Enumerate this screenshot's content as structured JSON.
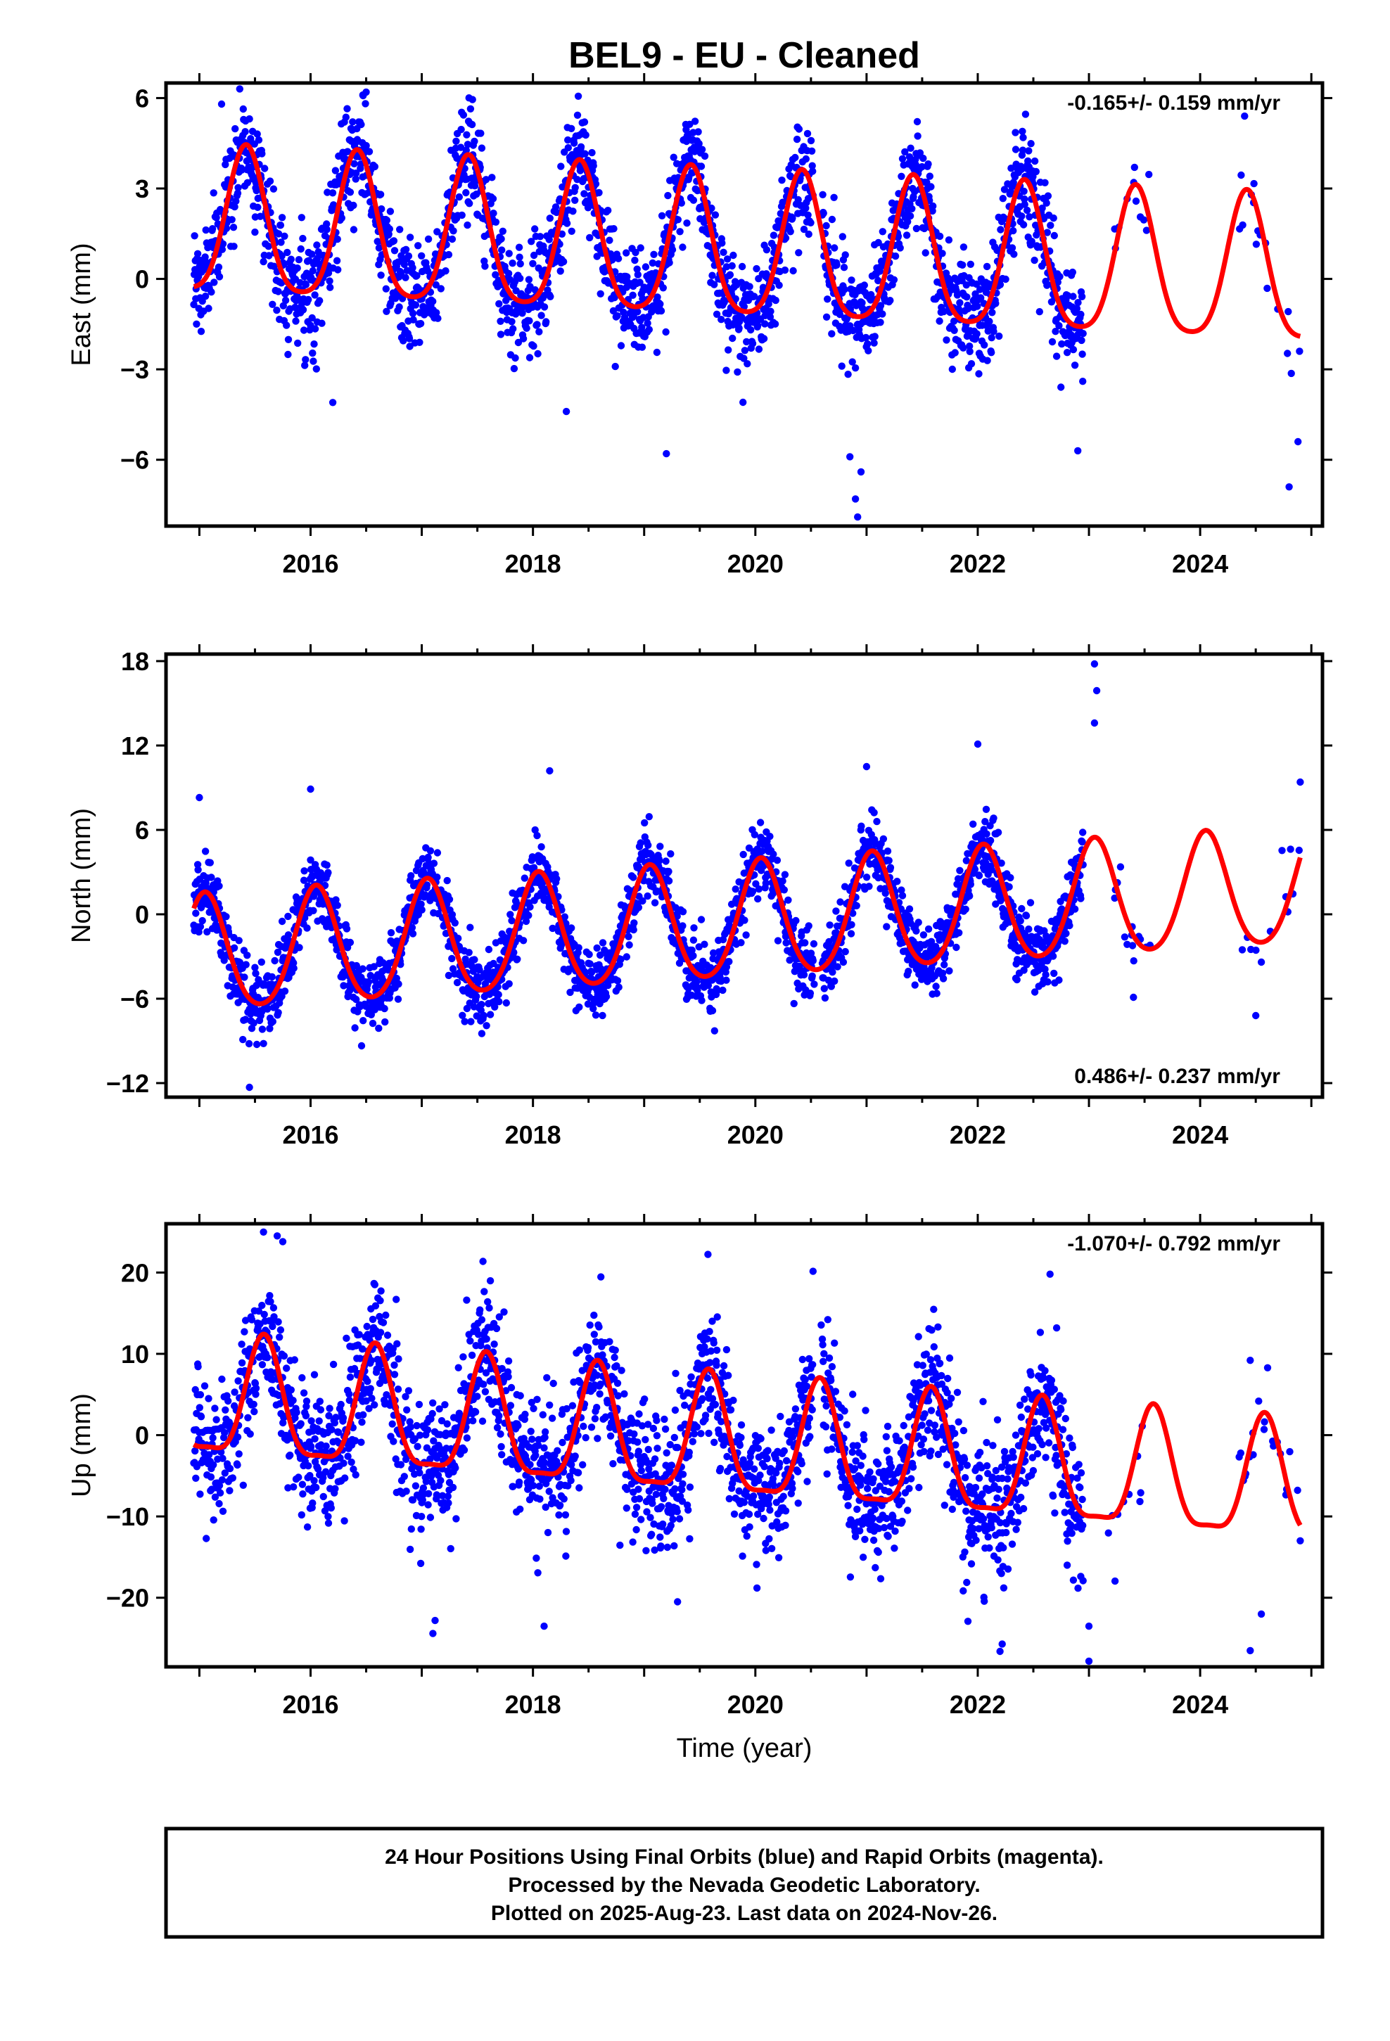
{
  "title": "BEL9  - EU - Cleaned",
  "xlabel": "Time (year)",
  "footer": {
    "line1": "24 Hour Positions Using Final Orbits (blue) and Rapid Orbits (magenta).",
    "line2": "Processed by the Nevada Geodetic Laboratory.",
    "line3": "Plotted on 2025-Aug-23. Last data on 2024-Nov-26."
  },
  "colors": {
    "points": "#0000ff",
    "model": "#ff0000",
    "frame": "#000000"
  },
  "chart_data": [
    {
      "type": "scatter",
      "ylabel": "East (mm)",
      "rate": "-0.165+/- 0.159 mm/yr",
      "rate_position": "top-right",
      "xlim": [
        2014.7,
        2025.1
      ],
      "ylim": [
        -8.2,
        6.5
      ],
      "yticks": [
        6,
        3,
        0,
        -3,
        -6
      ],
      "xticks": [
        2016,
        2018,
        2020,
        2022,
        2024
      ],
      "model": {
        "offset": 0.85,
        "trend": -0.165,
        "t0": 2020.0,
        "annual_amp": 2.4,
        "annual_peak": 2015.42,
        "semi_amp": 0.45,
        "semi_peak": 2015.42,
        "extra": []
      },
      "noise_sd": 0.9,
      "outliers": [
        [
          2015.2,
          5.8
        ],
        [
          2016.47,
          6.1
        ],
        [
          2016.5,
          6.2
        ],
        [
          2019.4,
          4.8
        ],
        [
          2020.9,
          -7.3
        ],
        [
          2020.92,
          -7.9
        ],
        [
          2020.95,
          -6.4
        ],
        [
          2020.85,
          -5.9
        ],
        [
          2019.2,
          -5.8
        ],
        [
          2016.2,
          -4.1
        ],
        [
          2018.3,
          -4.4
        ],
        [
          2022.9,
          -5.7
        ],
        [
          2024.4,
          5.4
        ],
        [
          2024.8,
          -6.9
        ],
        [
          2024.88,
          -5.4
        ]
      ]
    },
    {
      "type": "scatter",
      "ylabel": "North (mm)",
      "rate": "0.486+/- 0.237 mm/yr",
      "rate_position": "bottom-right",
      "xlim": [
        2014.7,
        2025.1
      ],
      "ylim": [
        -13,
        18.5
      ],
      "yticks": [
        18,
        12,
        6,
        0,
        -6,
        -12
      ],
      "xticks": [
        2016,
        2018,
        2020,
        2022,
        2024
      ],
      "model": {
        "offset": -0.6,
        "trend": 0.486,
        "t0": 2020.0,
        "annual_amp": 4.1,
        "annual_peak": 2015.05,
        "semi_amp": 0.5,
        "semi_peak": 2015.05,
        "extra": []
      },
      "noise_sd": 1.25,
      "outliers": [
        [
          2015.45,
          -12.3
        ],
        [
          2015.0,
          8.3
        ],
        [
          2016.0,
          8.9
        ],
        [
          2018.15,
          10.2
        ],
        [
          2021.0,
          10.5
        ],
        [
          2022.0,
          12.1
        ],
        [
          2023.05,
          13.6
        ],
        [
          2023.07,
          15.9
        ],
        [
          2023.05,
          17.8
        ],
        [
          2023.4,
          -5.9
        ],
        [
          2024.5,
          -7.2
        ],
        [
          2024.9,
          9.4
        ]
      ]
    },
    {
      "type": "scatter",
      "ylabel": "Up (mm)",
      "rate": "-1.070+/- 0.792 mm/yr",
      "rate_position": "top-right",
      "xlim": [
        2014.7,
        2025.1
      ],
      "ylim": [
        -28.5,
        26
      ],
      "yticks": [
        20,
        10,
        0,
        -10,
        -20
      ],
      "xticks": [
        2016,
        2018,
        2020,
        2022,
        2024
      ],
      "model": {
        "offset": -1.5,
        "trend": -1.07,
        "t0": 2020.0,
        "annual_amp": 7.2,
        "annual_peak": 2015.58,
        "semi_amp": 2.0,
        "semi_peak": 2015.58,
        "extra": []
      },
      "noise_sd": 4.2,
      "outliers": [
        [
          2015.7,
          24.5
        ],
        [
          2015.75,
          23.8
        ],
        [
          2017.1,
          -24.4
        ],
        [
          2017.12,
          -22.8
        ],
        [
          2018.1,
          -23.5
        ],
        [
          2019.3,
          -20.5
        ],
        [
          2022.2,
          -26.6
        ],
        [
          2022.22,
          -25.7
        ],
        [
          2022.65,
          19.8
        ],
        [
          2023.0,
          -27.8
        ],
        [
          2023.0,
          -23.5
        ],
        [
          2024.45,
          -26.5
        ],
        [
          2024.55,
          -22
        ],
        [
          2024.45,
          9.2
        ],
        [
          2024.9,
          -13
        ]
      ]
    }
  ]
}
